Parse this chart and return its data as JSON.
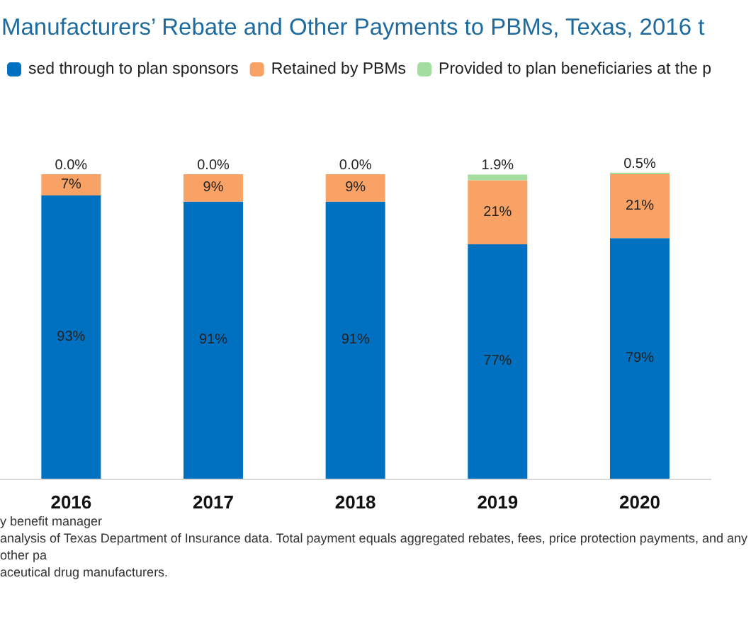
{
  "chart_data": {
    "type": "bar",
    "stacked": true,
    "title": "Manufacturers’ Rebate and Other Payments to PBMs, Texas, 2016 t",
    "categories": [
      "2016",
      "2017",
      "2018",
      "2019",
      "2020"
    ],
    "series": [
      {
        "name": "sed through to plan sponsors",
        "color": "#0070c0",
        "values": [
          93,
          91,
          91,
          77,
          79
        ],
        "value_labels": [
          "93%",
          "91%",
          "91%",
          "77%",
          "79%"
        ]
      },
      {
        "name": "Retained by PBMs",
        "color": "#f9a266",
        "values": [
          7,
          9,
          9,
          21,
          21
        ],
        "value_labels": [
          "7%",
          "9%",
          "9%",
          "21%",
          "21%"
        ]
      },
      {
        "name": "Provided to plan beneficiaries at the p",
        "color": "#a3dea0",
        "values": [
          0.0,
          0.0,
          0.0,
          1.9,
          0.5
        ],
        "value_labels": [
          "0.0%",
          "0.0%",
          "0.0%",
          "1.9%",
          "0.5%"
        ]
      }
    ],
    "legend": "top",
    "annotations": [
      "y benefit manager",
      "analysis of Texas Department of Insurance data. Total payment equals aggregated rebates, fees, price protection payments, and any other pa",
      "aceutical drug manufacturers."
    ]
  }
}
